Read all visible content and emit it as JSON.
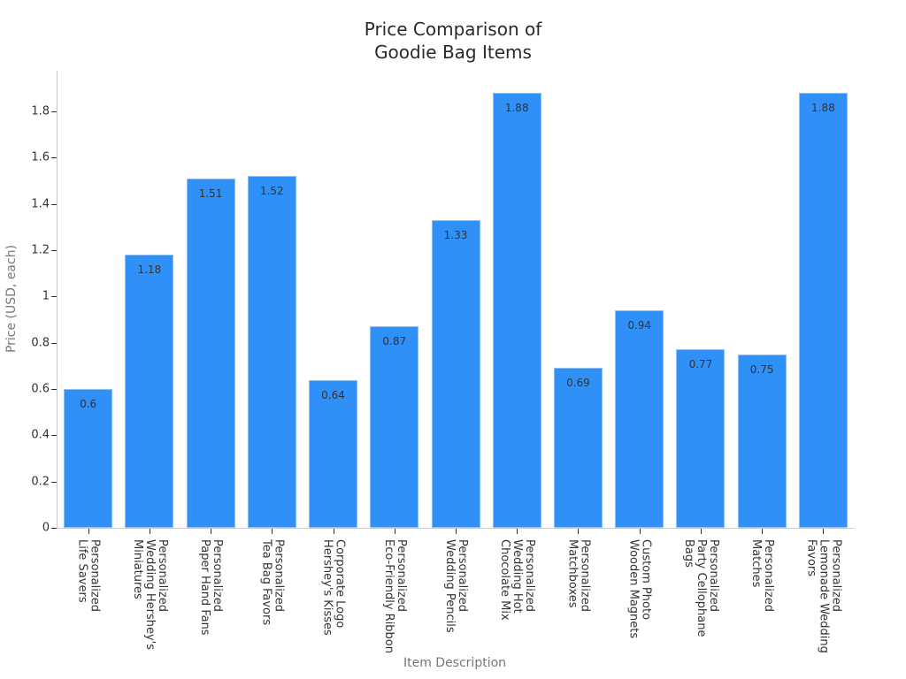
{
  "chart": {
    "title_line1": "Price Comparison of",
    "title_line2": "Goodie Bag Items",
    "xlabel": "Item Description",
    "ylabel": "Price (USD, each)",
    "bar_color": "#2f91f7"
  },
  "chart_data": {
    "type": "bar",
    "title": "Price Comparison of Goodie Bag Items",
    "xlabel": "Item Description",
    "ylabel": "Price (USD, each)",
    "ylim": [
      0,
      1.97
    ],
    "yticks": [
      "0",
      "0.2",
      "0.4",
      "0.6",
      "0.8",
      "1",
      "1.2",
      "1.4",
      "1.6",
      "1.8"
    ],
    "grid": false,
    "legend": null,
    "categories": [
      "Personalized Life Savers",
      "Personalized Wedding Hershey's Miniatures",
      "Personalized Paper Hand Fans",
      "Personalized Tea Bag Favors",
      "Corporate Logo Hershey's Kisses",
      "Personalized Eco-Friendly Ribbon",
      "Personalized Wedding Pencils",
      "Personalized Wedding Hot Chocolate Mix",
      "Personalized Matchboxes",
      "Custom Photo Wooden Magnets",
      "Personalized Party Cellophane Bags",
      "Personalized Matches",
      "Personalized Lemonade Wedding Favors"
    ],
    "category_labels_wrapped": [
      "Personalized\nLife Savers",
      "Personalized\nWedding Hershey's\nMiniatures",
      "Personalized\nPaper Hand Fans",
      "Personalized\nTea Bag Favors",
      "Corporate Logo\nHershey's Kisses",
      "Personalized\nEco-Friendly Ribbon",
      "Personalized\nWedding Pencils",
      "Personalized\nWedding Hot\nChocolate Mix",
      "Personalized\nMatchboxes",
      "Custom Photo\nWooden Magnets",
      "Personalized\nParty Cellophane\nBags",
      "Personalized\nMatches",
      "Personalized\nLemonade Wedding\nFavors"
    ],
    "values": [
      0.6,
      1.18,
      1.51,
      1.52,
      0.64,
      0.87,
      1.33,
      1.88,
      0.69,
      0.94,
      0.77,
      0.75,
      1.88
    ],
    "value_labels": [
      "0.6",
      "1.18",
      "1.51",
      "1.52",
      "0.64",
      "0.87",
      "1.33",
      "1.88",
      "0.69",
      "0.94",
      "0.77",
      "0.75",
      "1.88"
    ]
  }
}
